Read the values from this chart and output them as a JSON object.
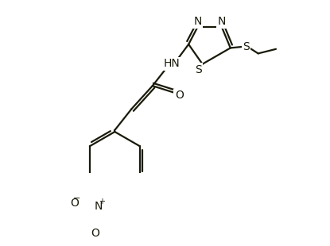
{
  "bg_color": "#ffffff",
  "bond_color": "#1a1a0a",
  "atom_label_color": "#1a1a0a",
  "line_width": 1.6,
  "font_size": 10,
  "figsize": [
    4.15,
    3.1
  ],
  "dpi": 100,
  "xlim": [
    0,
    415
  ],
  "ylim": [
    0,
    310
  ]
}
